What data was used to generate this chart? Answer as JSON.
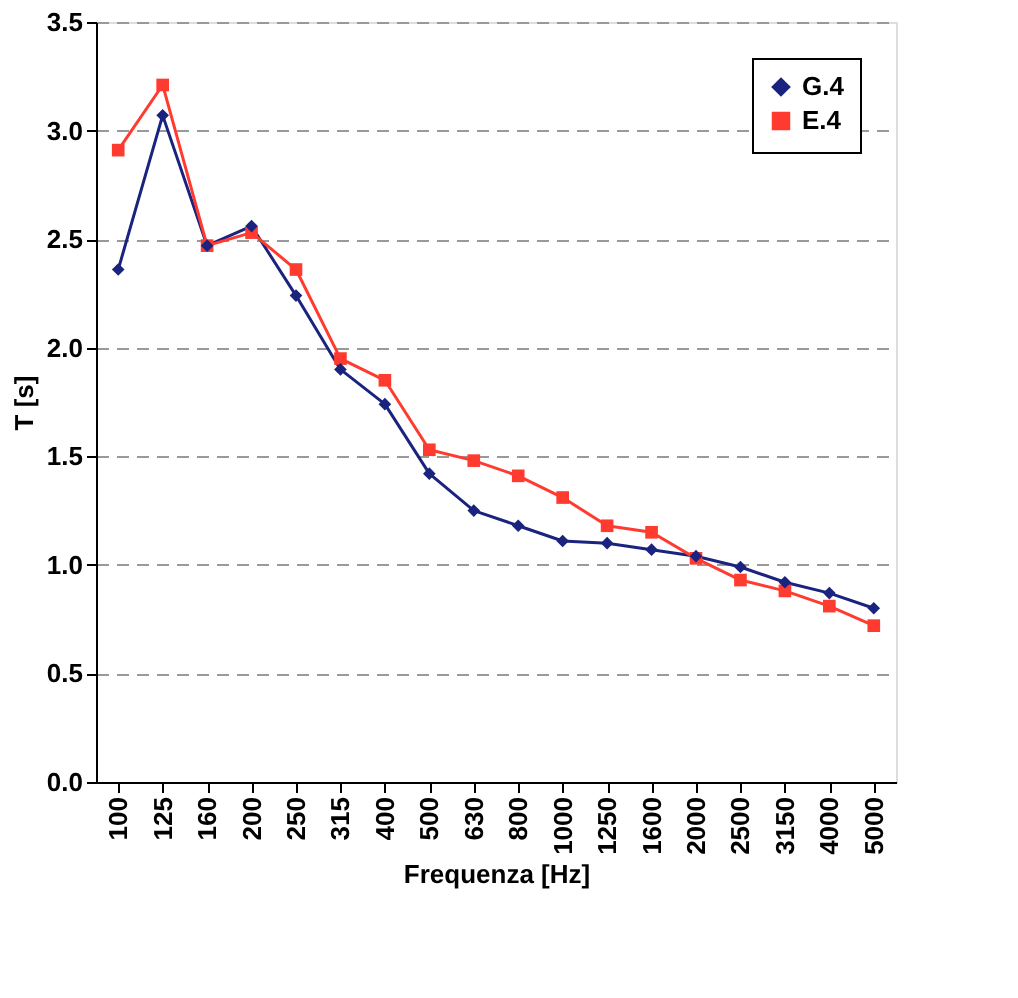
{
  "chart_data": {
    "type": "line",
    "xlabel": "Frequenza [Hz]",
    "ylabel": "T [s]",
    "categories": [
      "100",
      "125",
      "160",
      "200",
      "250",
      "315",
      "400",
      "500",
      "630",
      "800",
      "1000",
      "1250",
      "1600",
      "2000",
      "2500",
      "3150",
      "4000",
      "5000"
    ],
    "series": [
      {
        "name": "G.4",
        "color": "#1a237e",
        "marker": "diamond",
        "values": [
          2.36,
          3.07,
          2.47,
          2.56,
          2.24,
          1.9,
          1.74,
          1.42,
          1.25,
          1.18,
          1.11,
          1.1,
          1.07,
          1.04,
          0.99,
          0.92,
          0.87,
          0.8
        ]
      },
      {
        "name": "E.4",
        "color": "#ff3b30",
        "marker": "square",
        "values": [
          2.91,
          3.21,
          2.47,
          2.53,
          2.36,
          1.95,
          1.85,
          1.53,
          1.48,
          1.41,
          1.31,
          1.18,
          1.15,
          1.03,
          0.93,
          0.88,
          0.81,
          0.72
        ]
      }
    ],
    "ylim": [
      0,
      3.5
    ],
    "yticks": [
      {
        "value": 0,
        "label": "0.0"
      },
      {
        "value": 0.5,
        "label": "0.5"
      },
      {
        "value": 1,
        "label": "1.0"
      },
      {
        "value": 1.5,
        "label": "1.5"
      },
      {
        "value": 2,
        "label": "2.0"
      },
      {
        "value": 2.5,
        "label": "2.5"
      },
      {
        "value": 3,
        "label": "3.0"
      },
      {
        "value": 3.5,
        "label": "3.5"
      }
    ],
    "grid": "y",
    "legend": "top right",
    "line_style": "solid"
  }
}
